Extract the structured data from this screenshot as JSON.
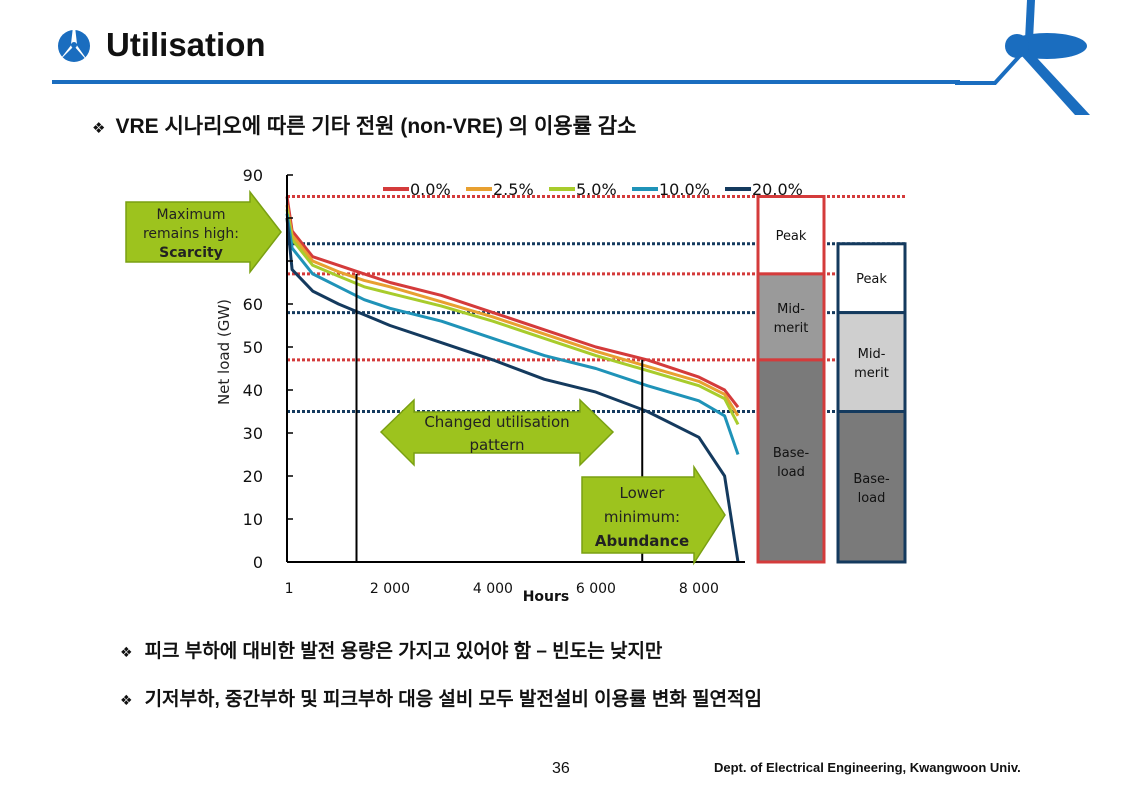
{
  "header": {
    "title": "Utilisation"
  },
  "bullets": {
    "main": "VRE 시나리오에 따른 기타 전원 (non-VRE) 의 이용률 감소",
    "b1": "피크 부하에 대비한 발전 용량은 가지고 있어야 함 – 빈도는 낮지만",
    "b2": "기저부하, 중간부하 및 피크부하 대응 설비 모두 발전설비 이용률 변화 필연적임",
    "symbol": "❖"
  },
  "footer": {
    "page": "36",
    "dept": "Dept. of Electrical Engineering, Kwangwoon Univ."
  },
  "chart_data": {
    "type": "line",
    "title": "",
    "xlabel": "Hours",
    "ylabel": "Net load (GW)",
    "xlim": [
      0,
      8760
    ],
    "ylim": [
      0,
      90
    ],
    "xticks": [
      {
        "v": 1,
        "label": "1"
      },
      {
        "v": 2000,
        "label": "2 000"
      },
      {
        "v": 4000,
        "label": "4 000"
      },
      {
        "v": 6000,
        "label": "6 000"
      },
      {
        "v": 8000,
        "label": "8 000"
      }
    ],
    "yticks": [
      0,
      10,
      20,
      30,
      40,
      50,
      60,
      70,
      80,
      90
    ],
    "ytick_labels": [
      "0",
      "10",
      "20",
      "30",
      "40",
      "50",
      "60",
      "",
      "",
      "90"
    ],
    "legend_position": "top",
    "x": [
      0,
      100,
      500,
      1000,
      1500,
      2000,
      3000,
      4000,
      5000,
      6000,
      7000,
      8000,
      8500,
      8760
    ],
    "series": [
      {
        "name": "0.0%",
        "color": "#d43b3b",
        "values": [
          85,
          77,
          71,
          69,
          67,
          65,
          62,
          58,
          54,
          50,
          47,
          43,
          40,
          36
        ]
      },
      {
        "name": "2.5%",
        "color": "#e8a030",
        "values": [
          83,
          76,
          70,
          67.5,
          65.5,
          64,
          60.5,
          57,
          53,
          49,
          45.5,
          42,
          39,
          34
        ]
      },
      {
        "name": "5.0%",
        "color": "#a8cc2c",
        "values": [
          82,
          75,
          69,
          66.5,
          64,
          62.5,
          59.5,
          56,
          52,
          48,
          44.5,
          41,
          38,
          32
        ]
      },
      {
        "name": "10.0%",
        "color": "#1f93b8",
        "values": [
          81,
          73,
          67,
          64,
          61,
          59,
          56,
          52,
          48,
          45,
          41,
          37.5,
          34,
          25
        ]
      },
      {
        "name": "20.0%",
        "color": "#143a5e",
        "values": [
          80,
          68,
          63,
          60,
          57.5,
          55,
          51,
          47,
          42.5,
          39.5,
          35,
          29,
          20,
          0
        ]
      }
    ],
    "reference_lines": [
      {
        "scenario": "0.0%",
        "color": "#d43b3b",
        "values": [
          85,
          67,
          47
        ]
      },
      {
        "scenario": "20.0%",
        "color": "#143a5e",
        "values": [
          74,
          58,
          35
        ]
      }
    ],
    "vertical_markers": [
      1350,
      6900
    ],
    "annotations": {
      "scarcity": [
        "Maximum",
        "remains high:",
        "Scarcity"
      ],
      "changed": [
        "Changed utilisation",
        "pattern"
      ],
      "abundance": [
        "Lower",
        "minimum:",
        "Abundance"
      ]
    },
    "stacks": [
      {
        "scenario": "0.0%",
        "color": "#d43b3b",
        "segments": [
          {
            "label": "Peak",
            "from": 67,
            "to": 85,
            "fill": "#ffffff"
          },
          {
            "label": "Mid-\nmerit",
            "from": 47,
            "to": 67,
            "fill": "#9a9a9a"
          },
          {
            "label": "Base-\nload",
            "from": 0,
            "to": 47,
            "fill": "#7a7a7a"
          }
        ]
      },
      {
        "scenario": "20.0%",
        "color": "#143a5e",
        "segments": [
          {
            "label": "Peak",
            "from": 58,
            "to": 74,
            "fill": "#ffffff"
          },
          {
            "label": "Mid-\nmerit",
            "from": 35,
            "to": 58,
            "fill": "#cfcfcf"
          },
          {
            "label": "Base-\nload",
            "from": 0,
            "to": 35,
            "fill": "#7a7a7a"
          }
        ]
      }
    ]
  }
}
